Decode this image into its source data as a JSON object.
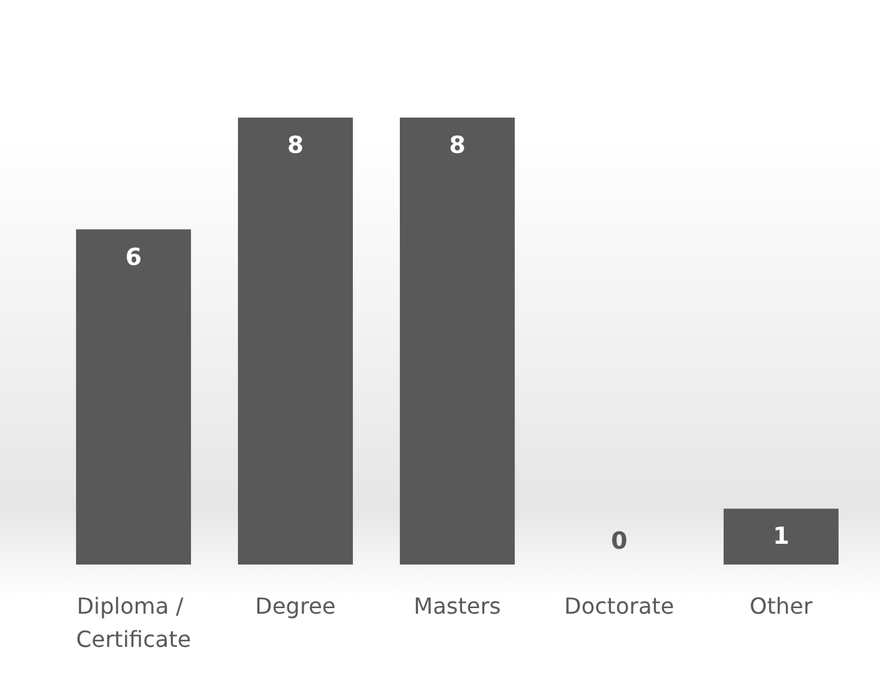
{
  "chart_data": {
    "type": "bar",
    "categories": [
      "Diploma / Certificate",
      "Degree",
      "Masters",
      "Doctorate",
      "Other"
    ],
    "values": [
      6,
      8,
      8,
      0,
      1
    ],
    "color": "#595959",
    "data_labels": true,
    "tick_labels": "x",
    "grid": false
  }
}
